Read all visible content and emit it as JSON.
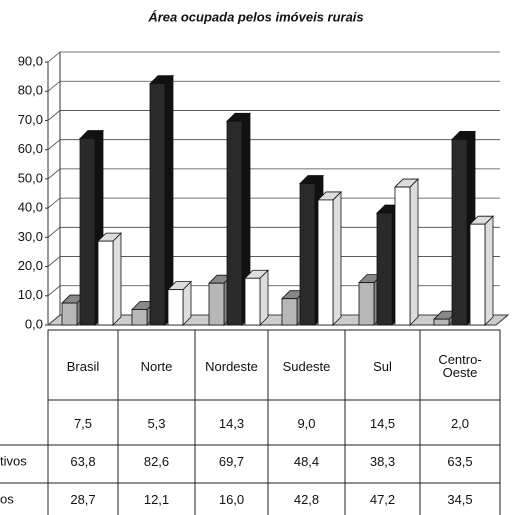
{
  "chart_data": {
    "type": "bar3d",
    "title": "Área ocupada pelos imóveis rurais",
    "categories": [
      "Brasil",
      "Norte",
      "Nordeste",
      "Sudeste",
      "Sul",
      "Centro-Oeste"
    ],
    "series": [
      {
        "name": null,
        "color": "#b8b8b8",
        "values": [
          7.5,
          5.3,
          14.3,
          9.0,
          14.5,
          2.0
        ],
        "value_labels": [
          "7,5",
          "5,3",
          "14,3",
          "9,0",
          "14,5",
          "2,0"
        ]
      },
      {
        "name": "tivos",
        "color": "#2a2a2a",
        "values": [
          63.8,
          82.6,
          69.7,
          48.4,
          38.3,
          63.5
        ],
        "value_labels": [
          "63,8",
          "82,6",
          "69,7",
          "48,4",
          "38,3",
          "63,5"
        ]
      },
      {
        "name": "os",
        "color": "#ffffff",
        "values": [
          28.7,
          12.1,
          16.0,
          42.8,
          47.2,
          34.5
        ],
        "value_labels": [
          "28,7",
          "12,1",
          "16,0",
          "42,8",
          "47,2",
          "34,5"
        ]
      }
    ],
    "ylim": [
      0,
      90
    ],
    "yticks": [
      {
        "value": 0,
        "label": "0,0"
      },
      {
        "value": 10,
        "label": "10,0"
      },
      {
        "value": 20,
        "label": "20,0"
      },
      {
        "value": 30,
        "label": "30,0"
      },
      {
        "value": 40,
        "label": "40,0"
      },
      {
        "value": 50,
        "label": "50,0"
      },
      {
        "value": 60,
        "label": "60,0"
      },
      {
        "value": 70,
        "label": "70,0"
      },
      {
        "value": 80,
        "label": "80,0"
      },
      {
        "value": 90,
        "label": "90,0"
      }
    ],
    "grid": true
  }
}
